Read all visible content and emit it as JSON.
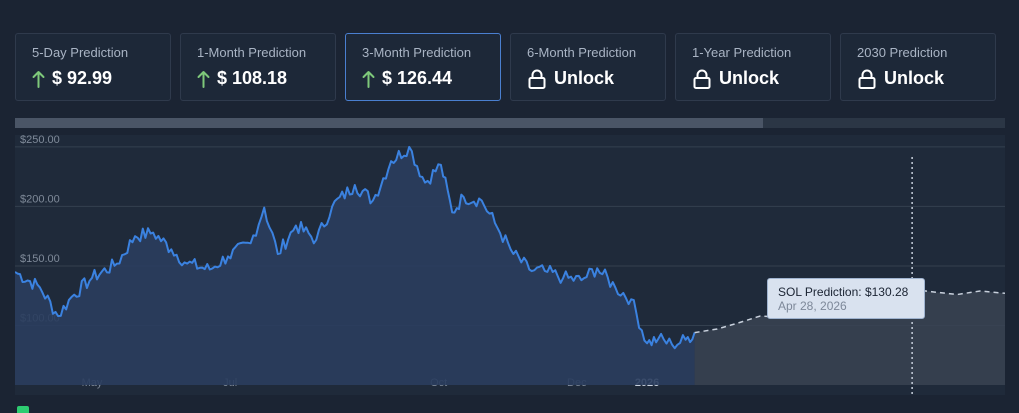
{
  "cards": [
    {
      "title": "5-Day Prediction",
      "value": "$ 92.99",
      "icon": "arrow-up-icon",
      "active": false
    },
    {
      "title": "1-Month Prediction",
      "value": "$ 108.18",
      "icon": "arrow-up-icon",
      "active": false
    },
    {
      "title": "3-Month Prediction",
      "value": "$ 126.44",
      "icon": "arrow-up-icon",
      "active": true
    },
    {
      "title": "6-Month Prediction",
      "value": "Unlock",
      "icon": "lock-icon",
      "active": false
    },
    {
      "title": "1-Year Prediction",
      "value": "Unlock",
      "icon": "lock-icon",
      "active": false
    },
    {
      "title": "2030 Prediction",
      "value": "Unlock",
      "icon": "lock-icon",
      "active": false
    }
  ],
  "colors": {
    "line": "#3b82e0",
    "area": "#2a3d5e",
    "prediction": "#c8d0dc",
    "up_arrow": "#7ec87a",
    "background": "#1b2433"
  },
  "tooltip": {
    "label": "SOL Prediction:",
    "value": "$130.28",
    "date": "Apr 28, 2026"
  },
  "chart_data": {
    "type": "line",
    "title": "",
    "xlabel": "",
    "ylabel": "",
    "y_tick_labels": [
      "$250.00",
      "$200.00",
      "$150.00",
      "$100.00"
    ],
    "y_ticks": [
      250,
      200,
      150,
      100
    ],
    "ylim": [
      50,
      260
    ],
    "x_tick_labels": [
      "May",
      "Jul",
      "Oct",
      "Dec",
      "2026"
    ],
    "grid": true,
    "series": [
      {
        "style": "solid",
        "x": [
          "2025-03-28",
          "2025-04-08",
          "2025-04-16",
          "2025-04-22",
          "2025-05-01",
          "2025-05-12",
          "2025-05-20",
          "2025-05-28",
          "2025-06-05",
          "2025-06-12",
          "2025-06-22",
          "2025-06-30",
          "2025-07-10",
          "2025-07-16",
          "2025-07-22",
          "2025-07-30",
          "2025-08-08",
          "2025-08-15",
          "2025-08-25",
          "2025-09-02",
          "2025-09-10",
          "2025-09-18",
          "2025-09-25",
          "2025-10-02",
          "2025-10-07",
          "2025-10-12",
          "2025-10-20",
          "2025-10-27",
          "2025-11-03",
          "2025-11-10",
          "2025-11-18",
          "2025-11-25",
          "2025-12-03",
          "2025-12-10",
          "2025-12-18",
          "2025-12-25",
          "2026-01-01",
          "2026-01-06",
          "2026-01-12",
          "2026-01-18",
          "2026-01-22"
        ],
        "values": [
          145,
          132,
          108,
          124,
          140,
          152,
          175,
          178,
          164,
          152,
          147,
          158,
          169,
          199,
          160,
          184,
          172,
          200,
          218,
          205,
          238,
          250,
          220,
          235,
          195,
          208,
          205,
          182,
          160,
          147,
          145,
          140,
          138,
          148,
          132,
          122,
          85,
          89,
          84,
          88,
          94
        ]
      },
      {
        "style": "dashed",
        "x": [
          "2026-01-22",
          "2026-02-01",
          "2026-02-10",
          "2026-02-20",
          "2026-03-01",
          "2026-03-10",
          "2026-03-20",
          "2026-03-30",
          "2026-04-08",
          "2026-04-18",
          "2026-04-28",
          "2026-05-08",
          "2026-05-18",
          "2026-05-28",
          "2026-06-08"
        ],
        "values": [
          94,
          97,
          102,
          108,
          107,
          111,
          116,
          114,
          119,
          125,
          130.28,
          128,
          126,
          129,
          127
        ]
      }
    ],
    "marker_date": "2026-04-28"
  }
}
